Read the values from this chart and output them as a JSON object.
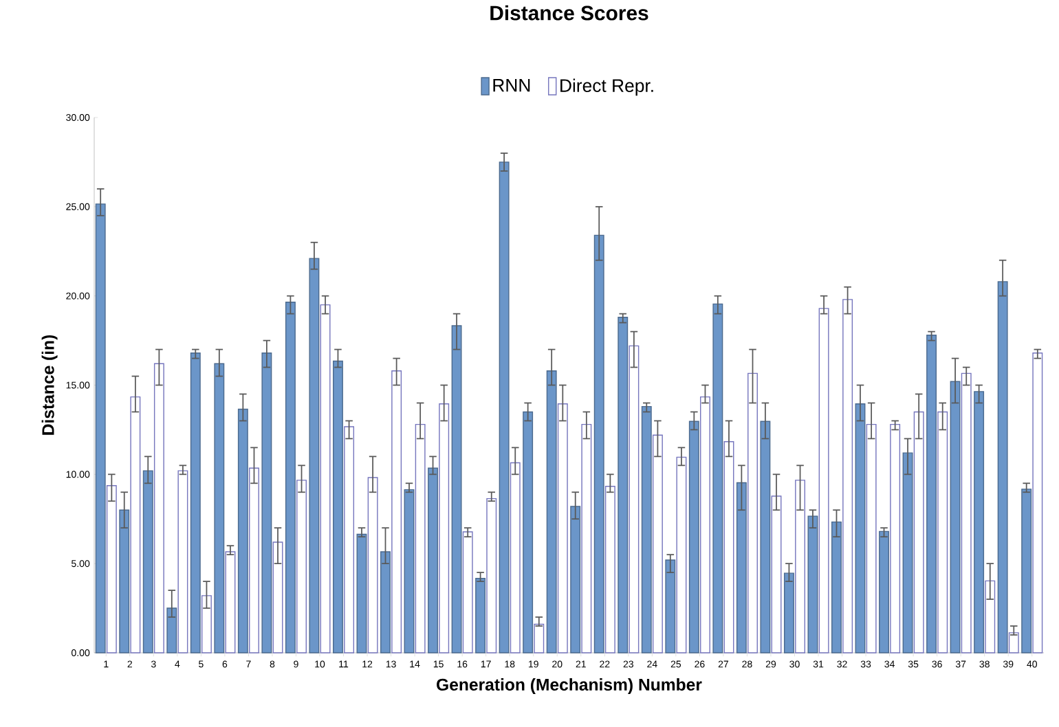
{
  "chart_data": {
    "type": "bar",
    "title": "Distance Scores",
    "xlabel": "Generation (Mechanism) Number",
    "ylabel": "Distance (in)",
    "categories": [
      "1",
      "2",
      "3",
      "4",
      "5",
      "6",
      "7",
      "8",
      "9",
      "10",
      "11",
      "12",
      "13",
      "14",
      "15",
      "16",
      "17",
      "18",
      "19",
      "20",
      "21",
      "22",
      "23",
      "24",
      "25",
      "26",
      "27",
      "28",
      "29",
      "30",
      "31",
      "32",
      "33",
      "34",
      "35",
      "36",
      "37",
      "38",
      "39",
      "40"
    ],
    "series": [
      {
        "name": "RNN",
        "color": "#6b96c9",
        "values": [
          25.15,
          8.0,
          10.2,
          2.5,
          16.8,
          16.2,
          13.65,
          16.8,
          19.65,
          22.1,
          16.35,
          6.64,
          5.66,
          9.14,
          10.35,
          18.33,
          4.17,
          27.5,
          13.5,
          15.8,
          8.2,
          23.4,
          18.8,
          13.8,
          5.2,
          12.97,
          19.55,
          9.53,
          12.97,
          4.46,
          7.66,
          7.33,
          13.95,
          6.8,
          11.2,
          17.8,
          15.2,
          14.64,
          20.8,
          9.17
        ],
        "errors": [
          [
            24.5,
            26.0
          ],
          [
            7.0,
            9.0
          ],
          [
            9.5,
            11.0
          ],
          [
            2.0,
            3.5
          ],
          [
            16.5,
            17.0
          ],
          [
            15.5,
            17.0
          ],
          [
            13.0,
            14.5
          ],
          [
            16.0,
            17.5
          ],
          [
            19.0,
            20.0
          ],
          [
            21.5,
            23.0
          ],
          [
            16.0,
            17.0
          ],
          [
            6.5,
            7.0
          ],
          [
            5.0,
            7.0
          ],
          [
            9.0,
            9.5
          ],
          [
            10.0,
            11.0
          ],
          [
            17.0,
            19.0
          ],
          [
            4.0,
            4.5
          ],
          [
            27.0,
            28.0
          ],
          [
            13.0,
            14.0
          ],
          [
            15.0,
            17.0
          ],
          [
            7.5,
            9.0
          ],
          [
            22.0,
            25.0
          ],
          [
            18.5,
            19.0
          ],
          [
            13.5,
            14.0
          ],
          [
            4.5,
            5.5
          ],
          [
            12.5,
            13.5
          ],
          [
            19.0,
            20.0
          ],
          [
            8.0,
            10.5
          ],
          [
            12.0,
            14.0
          ],
          [
            4.0,
            5.0
          ],
          [
            7.0,
            8.0
          ],
          [
            6.5,
            8.0
          ],
          [
            13.0,
            15.0
          ],
          [
            6.5,
            7.0
          ],
          [
            10.0,
            12.0
          ],
          [
            17.5,
            18.0
          ],
          [
            14.0,
            16.5
          ],
          [
            14.0,
            15.0
          ],
          [
            20.0,
            22.0
          ],
          [
            9.0,
            9.5
          ]
        ]
      },
      {
        "name": "Direct Repr.",
        "color": "#ffffff",
        "values": [
          9.37,
          14.34,
          16.2,
          10.2,
          3.2,
          5.66,
          10.35,
          6.2,
          9.67,
          19.5,
          12.67,
          9.82,
          15.8,
          12.8,
          13.95,
          6.78,
          8.64,
          10.65,
          1.6,
          13.95,
          12.8,
          9.33,
          17.2,
          12.2,
          10.96,
          14.34,
          11.83,
          15.66,
          8.78,
          9.67,
          19.3,
          19.8,
          12.8,
          12.8,
          13.5,
          13.5,
          15.66,
          4.03,
          1.12,
          16.8
        ],
        "errors": [
          [
            8.5,
            10.0
          ],
          [
            13.5,
            15.5
          ],
          [
            15.0,
            17.0
          ],
          [
            10.0,
            10.5
          ],
          [
            2.5,
            4.0
          ],
          [
            5.5,
            6.0
          ],
          [
            9.5,
            11.5
          ],
          [
            5.0,
            7.0
          ],
          [
            9.0,
            10.5
          ],
          [
            19.0,
            20.0
          ],
          [
            12.0,
            13.0
          ],
          [
            9.0,
            11.0
          ],
          [
            15.0,
            16.5
          ],
          [
            12.0,
            14.0
          ],
          [
            13.0,
            15.0
          ],
          [
            6.5,
            7.0
          ],
          [
            8.5,
            9.0
          ],
          [
            10.0,
            11.5
          ],
          [
            1.5,
            2.0
          ],
          [
            13.0,
            15.0
          ],
          [
            12.0,
            13.5
          ],
          [
            9.0,
            10.0
          ],
          [
            16.0,
            18.0
          ],
          [
            11.0,
            13.0
          ],
          [
            10.5,
            11.5
          ],
          [
            14.0,
            15.0
          ],
          [
            11.0,
            13.0
          ],
          [
            14.0,
            17.0
          ],
          [
            8.0,
            10.0
          ],
          [
            8.0,
            10.5
          ],
          [
            19.0,
            20.0
          ],
          [
            19.0,
            20.5
          ],
          [
            12.0,
            14.0
          ],
          [
            12.5,
            13.0
          ],
          [
            12.0,
            14.5
          ],
          [
            12.5,
            14.0
          ],
          [
            15.0,
            16.0
          ],
          [
            3.0,
            5.0
          ],
          [
            1.0,
            1.5
          ],
          [
            16.5,
            17.0
          ]
        ]
      }
    ],
    "ylim": [
      0,
      30
    ],
    "yticks": [
      {
        "value": 0,
        "label": "0.00"
      },
      {
        "value": 5,
        "label": "5.00"
      },
      {
        "value": 10,
        "label": "10.00"
      },
      {
        "value": 15,
        "label": "15.00"
      },
      {
        "value": 20,
        "label": "20.00"
      },
      {
        "value": 25,
        "label": "25.00"
      },
      {
        "value": 30,
        "label": "30.00"
      }
    ],
    "legend": "top"
  }
}
